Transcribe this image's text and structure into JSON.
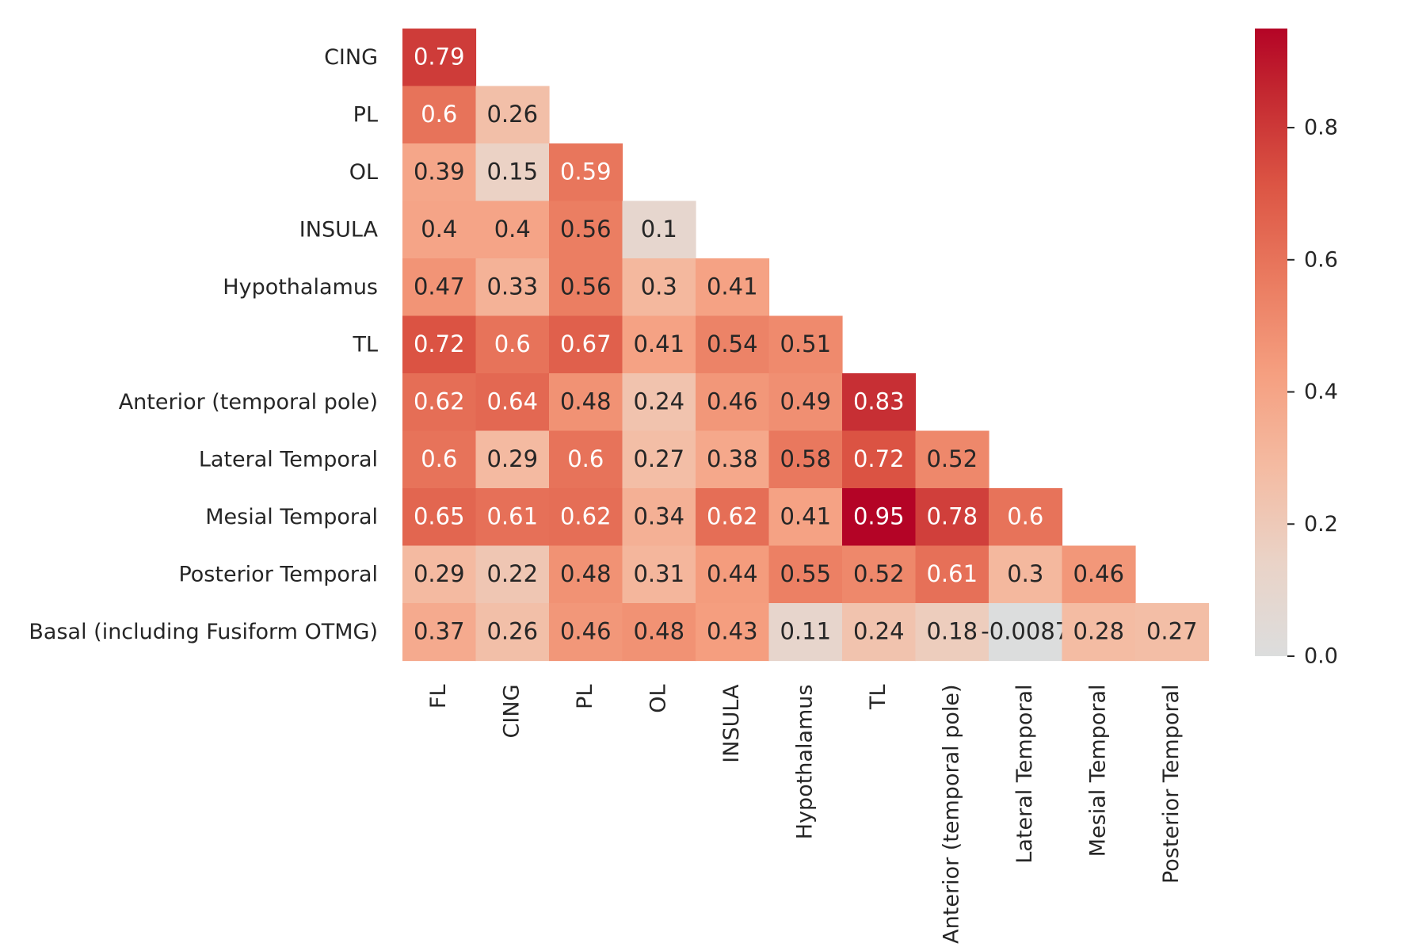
{
  "chart_data": {
    "type": "heatmap",
    "title": "",
    "xlabel": "",
    "ylabel": "",
    "x_labels": [
      "FL",
      "CING",
      "PL",
      "OL",
      "INSULA",
      "Hypothalamus",
      "TL",
      "Anterior (temporal pole)",
      "Lateral Temporal",
      "Mesial Temporal",
      "Posterior Temporal"
    ],
    "y_labels": [
      "CING",
      "PL",
      "OL",
      "INSULA",
      "Hypothalamus",
      "TL",
      "Anterior (temporal pole)",
      "Lateral Temporal",
      "Mesial Temporal",
      "Posterior Temporal",
      "Basal (including Fusiform OTMG)"
    ],
    "values": [
      [
        "0.79"
      ],
      [
        "0.6",
        "0.26"
      ],
      [
        "0.39",
        "0.15",
        "0.59"
      ],
      [
        "0.4",
        "0.4",
        "0.56",
        "0.1"
      ],
      [
        "0.47",
        "0.33",
        "0.56",
        "0.3",
        "0.41"
      ],
      [
        "0.72",
        "0.6",
        "0.67",
        "0.41",
        "0.54",
        "0.51"
      ],
      [
        "0.62",
        "0.64",
        "0.48",
        "0.24",
        "0.46",
        "0.49",
        "0.83"
      ],
      [
        "0.6",
        "0.29",
        "0.6",
        "0.27",
        "0.38",
        "0.58",
        "0.72",
        "0.52"
      ],
      [
        "0.65",
        "0.61",
        "0.62",
        "0.34",
        "0.62",
        "0.41",
        "0.95",
        "0.78",
        "0.6"
      ],
      [
        "0.29",
        "0.22",
        "0.48",
        "0.31",
        "0.44",
        "0.55",
        "0.52",
        "0.61",
        "0.3",
        "0.46"
      ],
      [
        "0.37",
        "0.26",
        "0.46",
        "0.48",
        "0.43",
        "0.11",
        "0.24",
        "0.18",
        "-0.0087",
        "0.28",
        "0.27"
      ]
    ],
    "mask": "upper-triangle",
    "colormap": "coolwarm-positive",
    "colors": {
      "low": "#dcdddd",
      "high": "#b40426"
    },
    "colorbar": {
      "range": [
        0.0,
        0.95
      ],
      "ticks": [
        "0.0",
        "0.2",
        "0.4",
        "0.6",
        "0.8"
      ]
    },
    "grid": false,
    "legend": "colorbar-right"
  }
}
